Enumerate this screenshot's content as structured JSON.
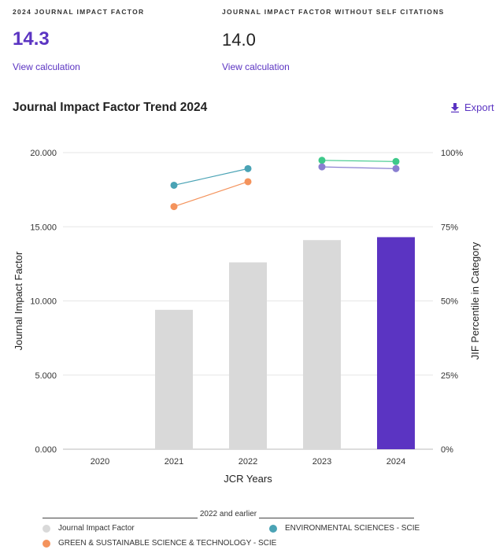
{
  "metrics": [
    {
      "label": "2024 JOURNAL IMPACT FACTOR",
      "value": "14.3",
      "link": "View calculation"
    },
    {
      "label": "JOURNAL IMPACT FACTOR WITHOUT SELF CITATIONS",
      "value": "14.0",
      "link": "View calculation"
    }
  ],
  "trend": {
    "title": "Journal Impact Factor Trend 2024",
    "export_label": "Export",
    "export_icon": "download-icon"
  },
  "colors": {
    "accent": "#5b34c2",
    "bar": "#d9d9d9",
    "bar_current": "#5b34c2",
    "env": "#4aa3b5",
    "green": "#f4935c",
    "series_mint": "#3ec98a",
    "series_lavender": "#8a7fd1"
  },
  "chart_data": {
    "type": "bar",
    "xlabel": "JCR Years",
    "ylabel": "Journal Impact Factor",
    "y2label": "JIF Percentile in Category",
    "categories": [
      "2020",
      "2021",
      "2022",
      "2023",
      "2024"
    ],
    "ylim": [
      0,
      20
    ],
    "y_ticks": [
      "0.000",
      "5.000",
      "10.000",
      "15.000",
      "20.000"
    ],
    "y2lim": [
      0,
      100
    ],
    "y2_ticks": [
      "0%",
      "25%",
      "50%",
      "75%",
      "100%"
    ],
    "grid": true,
    "values": [
      null,
      9.4,
      12.6,
      14.1,
      14.3
    ],
    "highlight_category": "2024",
    "percentile_series": [
      {
        "name": "ENVIRONMENTAL SCIENCES - SCIE",
        "color": "#4aa3b5",
        "points": [
          [
            1,
            89.0
          ],
          [
            2,
            94.6
          ]
        ]
      },
      {
        "name": "GREEN & SUSTAINABLE SCIENCE & TECHNOLOGY - SCIE",
        "color": "#f4935c",
        "points": [
          [
            1,
            81.8
          ],
          [
            2,
            90.2
          ]
        ]
      },
      {
        "color": "#3ec98a",
        "points": [
          [
            3,
            97.4
          ],
          [
            4,
            97.0
          ]
        ]
      },
      {
        "color": "#8a7fd1",
        "points": [
          [
            3,
            95.2
          ],
          [
            4,
            94.6
          ]
        ]
      }
    ]
  },
  "legend": {
    "header": "2022 and earlier",
    "items": [
      {
        "label": "Journal Impact Factor",
        "color": "#d9d9d9"
      },
      {
        "label": "ENVIRONMENTAL SCIENCES - SCIE",
        "color": "#4aa3b5"
      },
      {
        "label": "GREEN & SUSTAINABLE SCIENCE & TECHNOLOGY - SCIE",
        "color": "#f4935c"
      }
    ]
  }
}
